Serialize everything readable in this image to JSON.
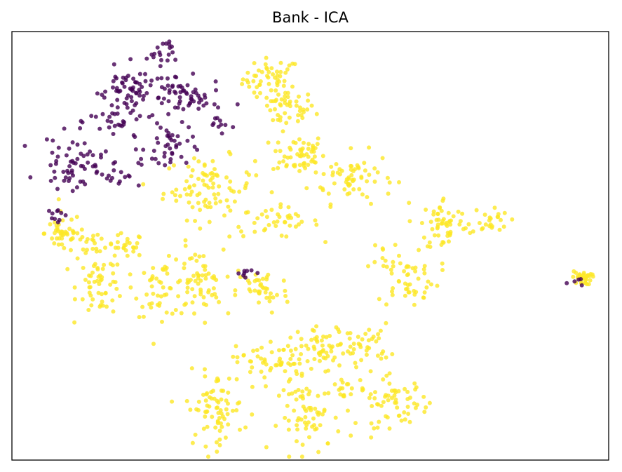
{
  "chart_data": {
    "type": "scatter",
    "title": "Bank - ICA",
    "xlabel": "",
    "ylabel": "",
    "ticks": "none",
    "grid": false,
    "legend": "none",
    "colors": {
      "class_0": "#440154",
      "class_1": "#fde725"
    },
    "xlim": [
      0,
      100
    ],
    "ylim": [
      0,
      100
    ],
    "point_alpha": 0.8,
    "clusters": [
      {
        "class": 0,
        "cx": 25.0,
        "cy": 95.5,
        "sx": 1.2,
        "sy": 1.5,
        "n": 18
      },
      {
        "class": 0,
        "cx": 21.5,
        "cy": 86.5,
        "sx": 4.0,
        "sy": 2.6,
        "n": 75
      },
      {
        "class": 0,
        "cx": 18.0,
        "cy": 79.0,
        "sx": 2.5,
        "sy": 2.6,
        "n": 35
      },
      {
        "class": 0,
        "cx": 29.5,
        "cy": 84.0,
        "sx": 2.8,
        "sy": 2.4,
        "n": 40
      },
      {
        "class": 0,
        "cx": 26.5,
        "cy": 73.0,
        "sx": 2.0,
        "sy": 3.0,
        "n": 40
      },
      {
        "class": 0,
        "cx": 10.0,
        "cy": 69.5,
        "sx": 2.6,
        "sy": 3.0,
        "n": 55
      },
      {
        "class": 0,
        "cx": 17.5,
        "cy": 67.0,
        "sx": 2.0,
        "sy": 1.6,
        "n": 20
      },
      {
        "class": 0,
        "cx": 7.5,
        "cy": 58.0,
        "sx": 1.0,
        "sy": 1.8,
        "n": 10
      },
      {
        "class": 0,
        "cx": 35.0,
        "cy": 78.0,
        "sx": 1.6,
        "sy": 1.2,
        "n": 10
      },
      {
        "class": 0,
        "cx": 39.0,
        "cy": 44.0,
        "sx": 1.0,
        "sy": 0.6,
        "n": 8
      },
      {
        "class": 0,
        "cx": 94.5,
        "cy": 42.5,
        "sx": 0.6,
        "sy": 0.8,
        "n": 5
      },
      {
        "class": 1,
        "cx": 43.5,
        "cy": 89.0,
        "sx": 2.4,
        "sy": 2.4,
        "n": 50
      },
      {
        "class": 1,
        "cx": 46.0,
        "cy": 82.0,
        "sx": 2.4,
        "sy": 2.2,
        "n": 45
      },
      {
        "class": 1,
        "cx": 48.0,
        "cy": 71.5,
        "sx": 2.2,
        "sy": 2.4,
        "n": 55
      },
      {
        "class": 1,
        "cx": 57.0,
        "cy": 66.0,
        "sx": 3.5,
        "sy": 3.0,
        "n": 65
      },
      {
        "class": 1,
        "cx": 33.0,
        "cy": 63.5,
        "sx": 3.8,
        "sy": 3.6,
        "n": 90
      },
      {
        "class": 1,
        "cx": 44.0,
        "cy": 55.5,
        "sx": 3.8,
        "sy": 1.8,
        "n": 40
      },
      {
        "class": 1,
        "cx": 8.5,
        "cy": 53.0,
        "sx": 1.5,
        "sy": 2.4,
        "n": 40
      },
      {
        "class": 1,
        "cx": 12.5,
        "cy": 50.0,
        "sx": 1.6,
        "sy": 2.0,
        "n": 20
      },
      {
        "class": 1,
        "cx": 19.0,
        "cy": 50.0,
        "sx": 1.6,
        "sy": 1.4,
        "n": 25
      },
      {
        "class": 1,
        "cx": 15.0,
        "cy": 41.0,
        "sx": 2.0,
        "sy": 3.5,
        "n": 55
      },
      {
        "class": 1,
        "cx": 25.0,
        "cy": 40.0,
        "sx": 2.2,
        "sy": 3.2,
        "n": 45
      },
      {
        "class": 1,
        "cx": 31.0,
        "cy": 41.0,
        "sx": 2.2,
        "sy": 4.0,
        "n": 60
      },
      {
        "class": 1,
        "cx": 42.0,
        "cy": 39.5,
        "sx": 2.2,
        "sy": 2.8,
        "n": 40
      },
      {
        "class": 1,
        "cx": 72.5,
        "cy": 55.0,
        "sx": 2.0,
        "sy": 3.2,
        "n": 55
      },
      {
        "class": 1,
        "cx": 80.0,
        "cy": 56.0,
        "sx": 1.6,
        "sy": 1.6,
        "n": 25
      },
      {
        "class": 1,
        "cx": 66.5,
        "cy": 42.0,
        "sx": 2.6,
        "sy": 3.0,
        "n": 45
      },
      {
        "class": 1,
        "cx": 62.0,
        "cy": 47.0,
        "sx": 1.4,
        "sy": 1.8,
        "n": 12
      },
      {
        "class": 1,
        "cx": 95.5,
        "cy": 42.5,
        "sx": 0.8,
        "sy": 0.8,
        "n": 35
      },
      {
        "class": 1,
        "cx": 44.0,
        "cy": 23.0,
        "sx": 3.2,
        "sy": 2.6,
        "n": 60
      },
      {
        "class": 1,
        "cx": 52.5,
        "cy": 25.5,
        "sx": 2.2,
        "sy": 3.0,
        "n": 45
      },
      {
        "class": 1,
        "cx": 59.0,
        "cy": 27.0,
        "sx": 2.2,
        "sy": 2.4,
        "n": 40
      },
      {
        "class": 1,
        "cx": 34.0,
        "cy": 12.0,
        "sx": 2.4,
        "sy": 4.2,
        "n": 75
      },
      {
        "class": 1,
        "cx": 50.0,
        "cy": 10.0,
        "sx": 2.6,
        "sy": 4.0,
        "n": 65
      },
      {
        "class": 1,
        "cx": 64.0,
        "cy": 13.5,
        "sx": 3.0,
        "sy": 2.8,
        "n": 60
      },
      {
        "class": 1,
        "cx": 56.0,
        "cy": 16.0,
        "sx": 1.5,
        "sy": 2.0,
        "n": 20
      }
    ]
  }
}
